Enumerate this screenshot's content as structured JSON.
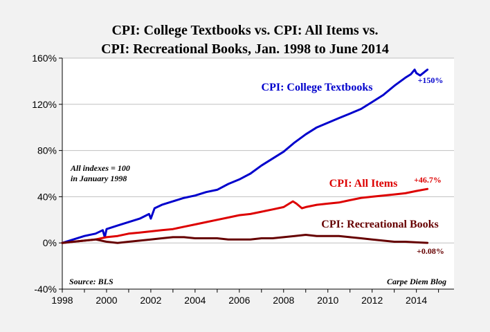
{
  "chart_data": {
    "type": "line",
    "title": "CPI: College Textbooks vs. CPI: All Items vs. CPI: Recreational Books, Jan. 1998 to June 2014",
    "title_lines": [
      "CPI: College Textbooks vs. CPI: All Items vs.",
      "CPI: Recreational Books, Jan. 1998 to June 2014"
    ],
    "xlabel": "",
    "ylabel": "",
    "xlim": [
      1998,
      2015.7
    ],
    "ylim": [
      -40,
      160
    ],
    "x_ticks": [
      1998,
      2000,
      2002,
      2004,
      2006,
      2008,
      2010,
      2012,
      2014
    ],
    "x_tick_labels": [
      "1998",
      "2000",
      "2002",
      "2004",
      "2006",
      "2008",
      "2010",
      "2012",
      "2014"
    ],
    "y_ticks": [
      -40,
      0,
      40,
      80,
      120,
      160
    ],
    "y_tick_labels": [
      "-40%",
      "0%",
      "40%",
      "80%",
      "120%",
      "160%"
    ],
    "grid": "horizontal",
    "colors": {
      "background": "#f2f2f2",
      "plot_background": "#ffffff",
      "gridline": "#bfbfbf"
    },
    "series": [
      {
        "name": "CPI: College Textbooks",
        "color": "#0000cc",
        "end_label": "+150%",
        "x": [
          1998.0,
          1998.5,
          1999.0,
          1999.5,
          1999.83,
          1999.92,
          2000.0,
          2000.5,
          2001.0,
          2001.5,
          2001.92,
          2002.0,
          2002.17,
          2002.5,
          2003.0,
          2003.5,
          2004.0,
          2004.5,
          2005.0,
          2005.5,
          2006.0,
          2006.5,
          2007.0,
          2007.5,
          2008.0,
          2008.5,
          2009.0,
          2009.5,
          2010.0,
          2010.5,
          2011.0,
          2011.5,
          2012.0,
          2012.5,
          2013.0,
          2013.5,
          2013.75,
          2013.92,
          2014.0,
          2014.17,
          2014.5
        ],
        "values": [
          0,
          3,
          6,
          8,
          11,
          5,
          12,
          15,
          18,
          21,
          25,
          21,
          30,
          33,
          36,
          39,
          41,
          44,
          46,
          51,
          55,
          60,
          67,
          73,
          79,
          87,
          94,
          100,
          104,
          108,
          112,
          116,
          122,
          128,
          136,
          143,
          146,
          150,
          147,
          145,
          150
        ]
      },
      {
        "name": "CPI: All Items",
        "color": "#dd0000",
        "end_label": "+46.7%",
        "x": [
          1998.0,
          1998.5,
          1999.0,
          1999.5,
          2000.0,
          2000.5,
          2001.0,
          2001.5,
          2002.0,
          2002.5,
          2003.0,
          2003.5,
          2004.0,
          2004.5,
          2005.0,
          2005.5,
          2006.0,
          2006.5,
          2007.0,
          2007.5,
          2008.0,
          2008.42,
          2008.58,
          2008.83,
          2009.0,
          2009.5,
          2010.0,
          2010.5,
          2011.0,
          2011.5,
          2012.0,
          2012.5,
          2013.0,
          2013.5,
          2014.0,
          2014.5
        ],
        "values": [
          0,
          1,
          2,
          3,
          5,
          6,
          8,
          9,
          10,
          11,
          12,
          14,
          16,
          18,
          20,
          22,
          24,
          25,
          27,
          29,
          31,
          36,
          34,
          30,
          31,
          33,
          34,
          35,
          37,
          39,
          40,
          41,
          42,
          43,
          45,
          46.7
        ]
      },
      {
        "name": "CPI: Recreational Books",
        "color": "#660000",
        "end_label": "+0.08%",
        "x": [
          1998.0,
          1998.5,
          1999.0,
          1999.5,
          2000.0,
          2000.5,
          2001.0,
          2001.5,
          2002.0,
          2002.5,
          2003.0,
          2003.5,
          2004.0,
          2004.5,
          2005.0,
          2005.5,
          2006.0,
          2006.5,
          2007.0,
          2007.5,
          2008.0,
          2008.5,
          2009.0,
          2009.5,
          2010.0,
          2010.5,
          2011.0,
          2011.5,
          2012.0,
          2012.5,
          2013.0,
          2013.5,
          2014.0,
          2014.5
        ],
        "values": [
          0,
          1,
          2,
          3,
          1,
          0,
          1,
          2,
          3,
          4,
          5,
          5,
          4,
          4,
          4,
          3,
          3,
          3,
          4,
          4,
          5,
          6,
          7,
          6,
          6,
          6,
          5,
          4,
          3,
          2,
          1,
          1,
          0.5,
          0.08
        ]
      }
    ],
    "annotations": {
      "note_lines": [
        "All indexes = 100",
        "in January 1998"
      ],
      "source": "Source: BLS",
      "credit": "Carpe Diem Blog"
    }
  }
}
